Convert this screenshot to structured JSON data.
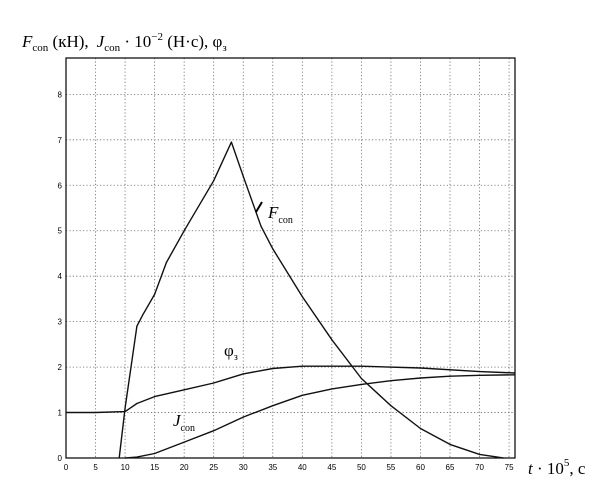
{
  "chart_data": {
    "type": "line",
    "ylabel": "F_con (кН), J_con · 10^-2 (Н·с), φ_з",
    "xlabel": "t · 10^5, с",
    "xlim": [
      0,
      76
    ],
    "ylim": [
      0,
      8.8
    ],
    "x_ticks": [
      0,
      5,
      10,
      15,
      20,
      25,
      30,
      35,
      40,
      45,
      50,
      55,
      60,
      65,
      70,
      75
    ],
    "y_ticks": [
      0,
      1,
      2,
      3,
      4,
      5,
      6,
      7,
      8
    ],
    "grid": true,
    "series": [
      {
        "name": "F_con",
        "x": [
          9,
          10,
          12,
          13,
          15,
          17,
          20,
          25,
          28,
          30,
          33,
          35,
          40,
          45,
          50,
          55,
          60,
          65,
          70,
          73,
          74
        ],
        "y": [
          0,
          1.1,
          2.9,
          3.15,
          3.6,
          4.3,
          5.0,
          6.1,
          6.95,
          6.2,
          5.1,
          4.6,
          3.55,
          2.6,
          1.75,
          1.15,
          0.65,
          0.3,
          0.08,
          0.02,
          0
        ]
      },
      {
        "name": "φ_з",
        "x": [
          0,
          5,
          10,
          12,
          15,
          20,
          25,
          30,
          35,
          40,
          50,
          60,
          70,
          76
        ],
        "y": [
          1.0,
          1.0,
          1.02,
          1.2,
          1.35,
          1.5,
          1.65,
          1.85,
          1.97,
          2.02,
          2.02,
          1.98,
          1.9,
          1.87
        ]
      },
      {
        "name": "J_con",
        "x": [
          10,
          12,
          15,
          20,
          25,
          30,
          35,
          40,
          45,
          50,
          55,
          60,
          65,
          70,
          76
        ],
        "y": [
          0,
          0.02,
          0.1,
          0.35,
          0.6,
          0.9,
          1.15,
          1.38,
          1.52,
          1.62,
          1.7,
          1.76,
          1.8,
          1.82,
          1.83
        ]
      }
    ],
    "labels": {
      "F_con": {
        "main": "F",
        "sub": "con"
      },
      "phi": {
        "main": "φ",
        "sub": "з"
      },
      "J_con": {
        "main": "J",
        "sub": "con"
      }
    },
    "ytitle": {
      "F": "F",
      "F_sub": "con",
      "F_unit": " (кН),",
      "J": "J",
      "J_sub": "con",
      "J_mid": " · 10",
      "J_exp": "−2",
      "J_unit": " (Н·с), φ",
      "phi_sub": "з"
    },
    "xtitle": {
      "t": "t",
      "mid": " · 10",
      "exp": "5",
      "unit": ", с"
    }
  }
}
